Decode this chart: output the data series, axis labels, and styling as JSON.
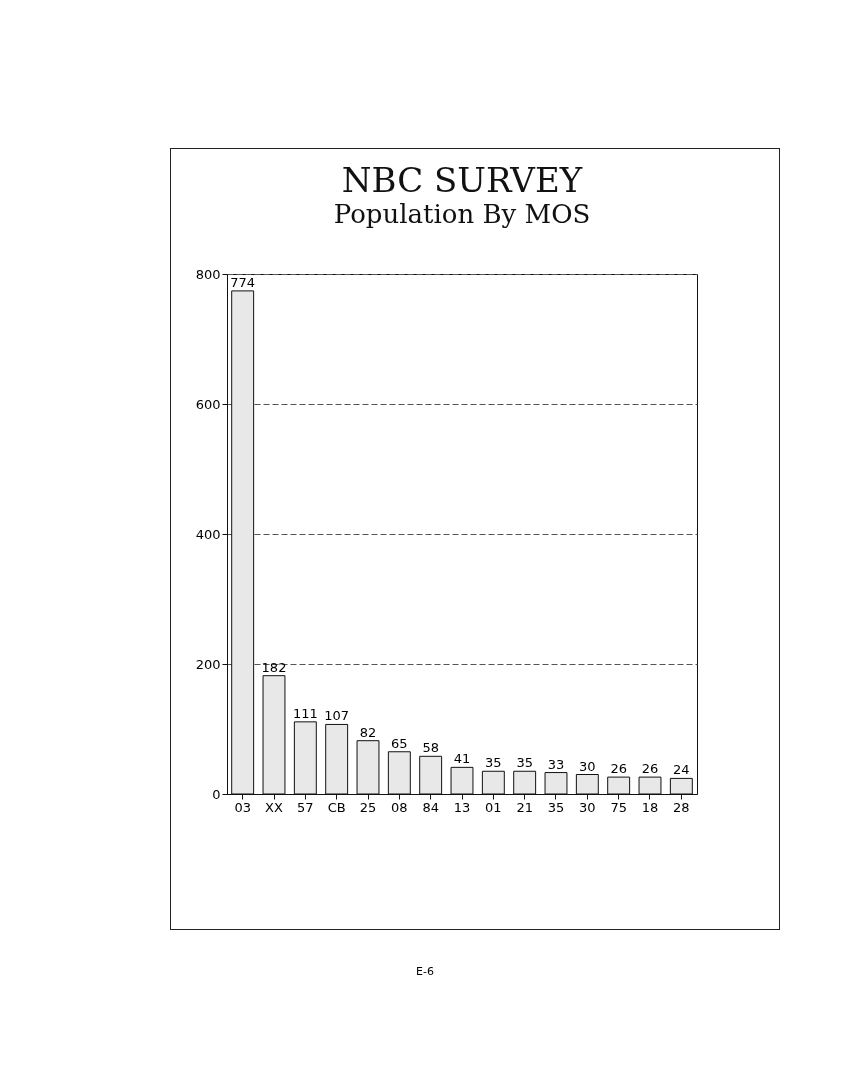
{
  "chart_data": {
    "type": "bar",
    "title": "NBC SURVEY",
    "subtitle": "Population By MOS",
    "categories": [
      "03",
      "XX",
      "57",
      "CB",
      "25",
      "08",
      "84",
      "13",
      "01",
      "21",
      "35",
      "30",
      "75",
      "18",
      "28"
    ],
    "values": [
      774,
      182,
      111,
      107,
      82,
      65,
      58,
      41,
      35,
      35,
      33,
      30,
      26,
      26,
      24
    ],
    "color": "#e8e8e8",
    "ylim": [
      0,
      800
    ],
    "yticks": [
      0,
      200,
      400,
      600,
      800
    ],
    "grid": "y",
    "data_labels": true,
    "annotations": [
      "E-6"
    ]
  }
}
